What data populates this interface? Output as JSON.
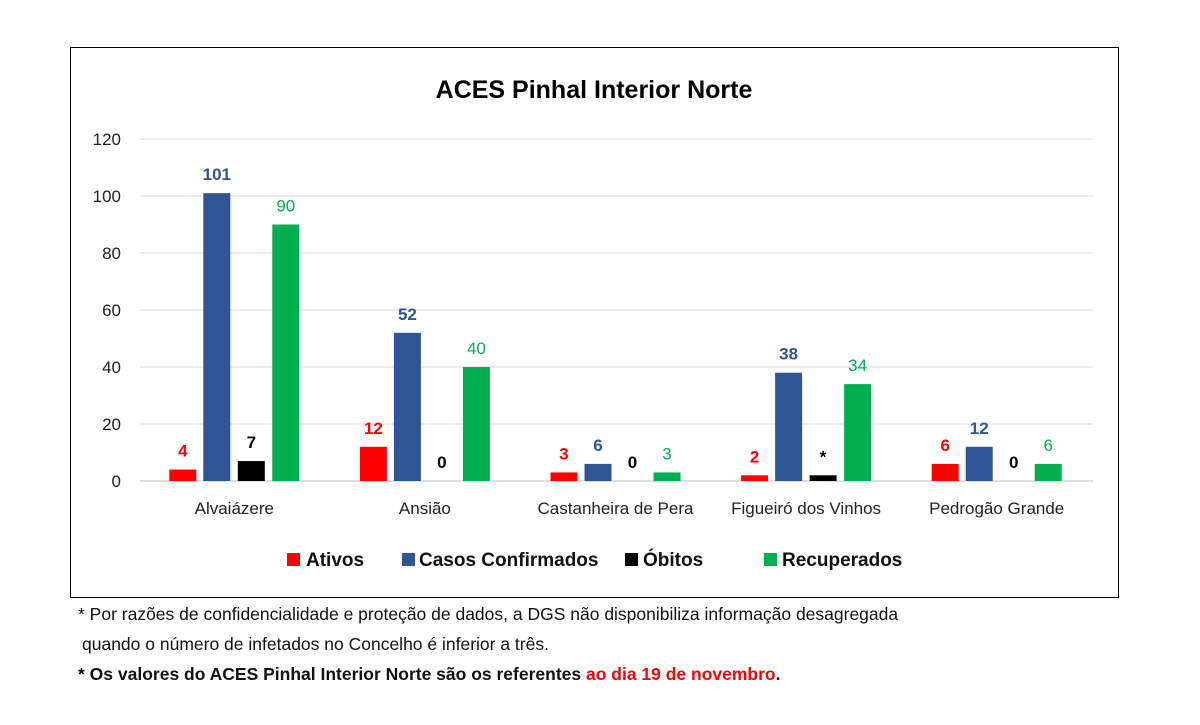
{
  "chart_data": {
    "type": "bar",
    "title": "ACES Pinhal Interior Norte",
    "categories": [
      "Alvaiázere",
      "Ansião",
      "Castanheira de Pera",
      "Figueiró dos Vinhos",
      "Pedrogão Grande"
    ],
    "series": [
      {
        "name": "Ativos",
        "color": "#ff0000",
        "values": [
          4,
          12,
          3,
          2,
          6
        ],
        "labels": [
          "4",
          "12",
          "3",
          "2",
          "6"
        ]
      },
      {
        "name": "Casos Confirmados",
        "color": "#2f5597",
        "values": [
          101,
          52,
          6,
          38,
          12
        ],
        "labels": [
          "101",
          "52",
          "6",
          "38",
          "12"
        ]
      },
      {
        "name": "Óbitos",
        "color": "#000000",
        "values": [
          7,
          0,
          0,
          2,
          0
        ],
        "labels": [
          "7",
          "0",
          "0",
          "*",
          "0"
        ]
      },
      {
        "name": "Recuperados",
        "color": "#00b050",
        "values": [
          90,
          40,
          3,
          34,
          6
        ],
        "labels": [
          "90",
          "40",
          "3",
          "34",
          "6"
        ]
      }
    ],
    "yticks": [
      "0",
      "20",
      "40",
      "60",
      "80",
      "100",
      "120"
    ],
    "ylim": [
      0,
      120
    ],
    "grid": true,
    "legend": "bottom"
  },
  "notes": {
    "line1": "* Por razões de confidencialidade e proteção de dados, a DGS não disponibiliza informação desagregada",
    "line2": "quando o número de infetados no Concelho é inferior a três.",
    "line3_prefix": "* Os valores do ACES Pinhal Interior Norte são os referentes ",
    "line3_red": "ao dia 19 de novembro",
    "line3_suffix": "."
  }
}
